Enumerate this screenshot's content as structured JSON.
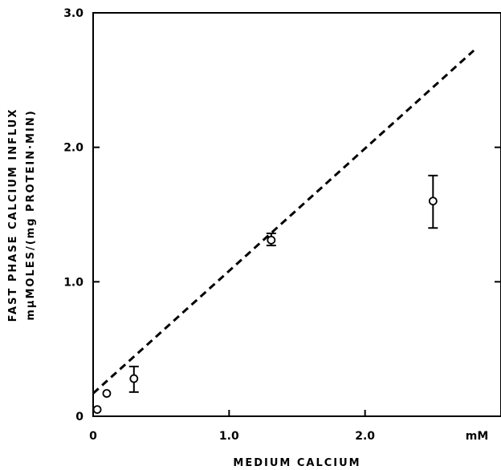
{
  "chart_data": {
    "type": "scatter",
    "xlabel": "MEDIUM CALCIUM",
    "x_unit": "mM",
    "ylabel_line1": "FAST PHASE CALCIUM INFLUX",
    "ylabel_line2": "mμMOLES/(mg PROTEIN·MIN)",
    "xlim": [
      0,
      3.0
    ],
    "ylim": [
      0,
      3.0
    ],
    "x_ticks": [
      {
        "value": 0,
        "label": "0"
      },
      {
        "value": 1.0,
        "label": "1.0"
      },
      {
        "value": 2.0,
        "label": "2.0"
      }
    ],
    "y_ticks": [
      {
        "value": 0,
        "label": "0"
      },
      {
        "value": 1.0,
        "label": "1.0"
      },
      {
        "value": 2.0,
        "label": "2.0"
      },
      {
        "value": 3.0,
        "label": "3.0"
      }
    ],
    "grid": false,
    "series": [
      {
        "marker": "open-circle",
        "points": [
          {
            "x": 0.03,
            "y": 0.05
          },
          {
            "x": 0.1,
            "y": 0.17
          },
          {
            "x": 0.3,
            "y": 0.28,
            "err_low": 0.18,
            "err_high": 0.37
          },
          {
            "x": 1.31,
            "y": 1.31,
            "err_low": 1.27,
            "err_high": 1.36
          },
          {
            "x": 2.5,
            "y": 1.6,
            "err_low": 1.4,
            "err_high": 1.79
          }
        ]
      }
    ],
    "fit_line": {
      "style": "dashed",
      "points": [
        {
          "x": 0,
          "y": 0.17
        },
        {
          "x": 2.8,
          "y": 2.72
        }
      ]
    }
  }
}
